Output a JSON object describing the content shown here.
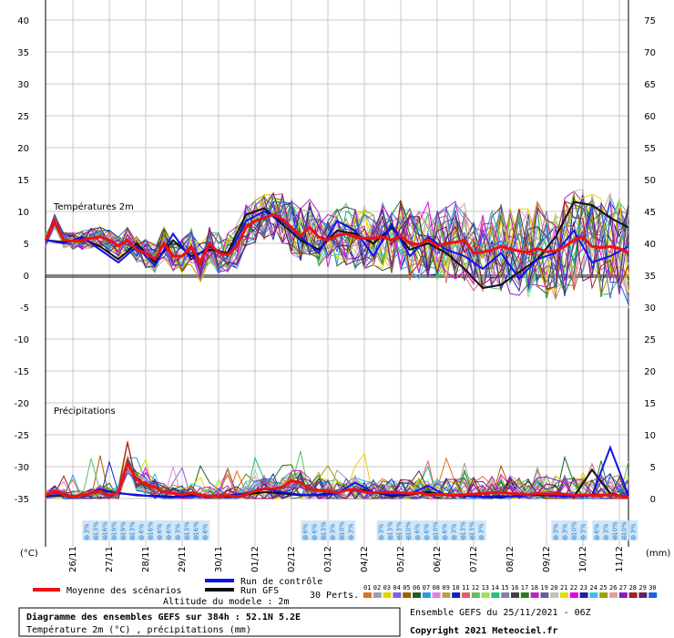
{
  "chart_data": {
    "type": "line",
    "title": "Diagramme des ensembles GEFS sur 384h : 52.1N 5.2E",
    "subtitle": "Température 2m (°C) , précipitations (mm)",
    "run_label": "Ensemble GEFS du 25/11/2021 - 06Z",
    "copyright": "Copyright 2021 Meteociel.fr",
    "altitude": "Altitude du modele : 2m",
    "panel_temp_label": "Températures 2m",
    "panel_precip_label": "Précipitations",
    "left_unit": "(°C)",
    "right_unit": "(mm)",
    "left_ticks": [
      40,
      35,
      30,
      25,
      20,
      15,
      10,
      5,
      0,
      -5,
      -10,
      -15,
      -20,
      -25,
      -30,
      -35
    ],
    "right_ticks": [
      75,
      70,
      65,
      60,
      55,
      50,
      45,
      40,
      35,
      30,
      25,
      20,
      15,
      10,
      5,
      0
    ],
    "x_ticks": [
      "26/11",
      "27/11",
      "28/11",
      "29/11",
      "30/11",
      "01/12",
      "02/12",
      "03/12",
      "04/12",
      "05/12",
      "06/12",
      "07/12",
      "08/12",
      "09/12",
      "10/12",
      "11/12"
    ],
    "x_range": [
      0,
      384
    ],
    "temp_ylim": [
      -35,
      40
    ],
    "precip_ylim": [
      0,
      15
    ],
    "series": [
      {
        "name": "Moyenne des scénarios",
        "color": "#ee1111",
        "t": [
          0,
          6,
          12,
          18,
          24,
          30,
          36,
          42,
          48,
          54,
          60,
          66,
          72,
          78,
          84,
          90,
          96,
          102,
          108,
          114,
          120,
          126,
          132,
          138,
          144,
          150,
          156,
          162,
          168,
          174,
          180,
          186,
          192,
          198,
          204,
          210,
          216,
          222,
          228,
          234,
          240,
          246,
          252,
          258,
          264,
          270,
          276,
          282,
          288,
          294,
          300,
          306,
          312,
          318,
          324,
          330,
          336,
          342,
          348,
          354,
          360,
          366,
          372,
          378,
          384
        ],
        "temp": [
          5.5,
          8.5,
          5.5,
          5.4,
          5.5,
          5.8,
          6.0,
          5.5,
          4.6,
          5.5,
          4.0,
          3.5,
          2.5,
          5.0,
          3.0,
          3.0,
          4.5,
          2.0,
          5.0,
          3.5,
          3.2,
          4.5,
          7.5,
          8.5,
          9.0,
          9.5,
          8.8,
          7.5,
          6.2,
          7.5,
          6.0,
          5.5,
          6.2,
          6.5,
          6.0,
          5.8,
          5.8,
          6.0,
          5.5,
          6.2,
          5.0,
          4.8,
          5.6,
          4.5,
          5.0,
          5.2,
          5.5,
          3.5,
          3.6,
          4.0,
          4.5,
          4.1,
          3.8,
          3.6,
          4.2,
          3.7,
          3.8,
          4.5,
          5.5,
          6.0,
          4.5,
          4.3,
          4.5,
          4.2,
          3.5
        ],
        "precip": [
          0.5,
          1.2,
          0.6,
          0.3,
          0.5,
          0.8,
          1.2,
          0.5,
          1.0,
          5.5,
          3.0,
          2.2,
          1.8,
          1.0,
          0.8,
          0.6,
          0.9,
          0.5,
          0.4,
          0.4,
          0.5,
          0.3,
          0.6,
          1.2,
          1.5,
          1.5,
          1.8,
          2.8,
          2.5,
          1.5,
          1.3,
          1.2,
          0.9,
          1.3,
          1.5,
          1.0,
          0.9,
          1.0,
          1.0,
          0.9,
          0.8,
          0.9,
          0.6,
          0.7,
          0.6,
          0.5,
          0.6,
          0.7,
          0.8,
          0.9,
          1.0,
          0.8,
          0.7,
          0.6,
          0.8,
          0.7,
          0.8,
          0.7,
          0.5,
          0.6,
          0.5,
          0.5,
          0.6,
          0.4,
          0.2
        ]
      },
      {
        "name": "Run de contrôle",
        "color": "#1111ee",
        "t": [
          0,
          12,
          24,
          36,
          48,
          60,
          72,
          84,
          96,
          108,
          120,
          132,
          144,
          156,
          168,
          180,
          192,
          204,
          216,
          228,
          240,
          252,
          264,
          276,
          288,
          300,
          312,
          324,
          336,
          348,
          360,
          372,
          384
        ],
        "temp": [
          5.5,
          5.0,
          6.0,
          4.0,
          2.0,
          4.5,
          1.5,
          6.5,
          2.5,
          4.5,
          3.0,
          8.5,
          10.0,
          8.5,
          6.0,
          3.5,
          8.5,
          7.0,
          3.0,
          8.0,
          3.0,
          6.0,
          4.0,
          3.0,
          1.0,
          3.5,
          -0.5,
          2.5,
          3.5,
          7.0,
          2.0,
          3.0,
          4.5
        ],
        "precip": [
          0.4,
          0.6,
          0.3,
          1.5,
          0.8,
          0.6,
          0.3,
          0.2,
          0.4,
          0.3,
          0.5,
          0.8,
          1.5,
          1.0,
          0.6,
          0.5,
          0.8,
          2.5,
          1.0,
          0.6,
          0.7,
          2.0,
          0.5,
          0.5,
          0.3,
          0.4,
          0.3,
          0.8,
          0.4,
          0.3,
          0.5,
          8.0,
          0.5
        ]
      },
      {
        "name": "Run GFS",
        "color": "#111111",
        "t": [
          0,
          12,
          24,
          36,
          48,
          60,
          72,
          84,
          96,
          108,
          120,
          132,
          144,
          156,
          168,
          180,
          192,
          204,
          216,
          228,
          240,
          252,
          264,
          276,
          288,
          300,
          312,
          324,
          336,
          348,
          360,
          372,
          384
        ],
        "temp": [
          5.5,
          5.2,
          5.8,
          4.5,
          2.5,
          5.0,
          2.0,
          5.5,
          3.0,
          4.0,
          3.5,
          9.5,
          10.5,
          8.0,
          5.5,
          4.0,
          7.0,
          6.5,
          5.0,
          7.5,
          4.0,
          5.0,
          3.5,
          1.0,
          -2.0,
          -1.5,
          0.5,
          2.5,
          6.0,
          11.5,
          11.0,
          9.0,
          7.5
        ],
        "precip": [
          0.3,
          0.5,
          0.4,
          1.2,
          0.9,
          0.5,
          0.4,
          0.3,
          0.5,
          0.4,
          0.3,
          0.6,
          1.0,
          0.8,
          0.5,
          0.6,
          1.0,
          1.5,
          1.0,
          0.4,
          0.6,
          1.0,
          0.6,
          0.4,
          0.3,
          0.2,
          0.5,
          0.6,
          0.4,
          0.3,
          4.5,
          0.8,
          0.2
        ]
      }
    ],
    "perturbation_count": 30,
    "perturbations_label": "30 Perts.",
    "perturbation_ids": [
      "01",
      "02",
      "03",
      "04",
      "05",
      "06",
      "07",
      "08",
      "09",
      "10",
      "11",
      "12",
      "13",
      "14",
      "15",
      "16",
      "17",
      "18",
      "19",
      "20",
      "21",
      "22",
      "23",
      "24",
      "25",
      "26",
      "27",
      "28",
      "29",
      "30"
    ],
    "perturbation_colors": [
      "#e07020",
      "#a0a0a0",
      "#e8d000",
      "#8060e0",
      "#a06000",
      "#206020",
      "#20a0e0",
      "#e080e0",
      "#c0a040",
      "#1020c0",
      "#e06060",
      "#60c060",
      "#a0e060",
      "#20c080",
      "#8080a0",
      "#404040",
      "#208020",
      "#c020c0",
      "#6060a0",
      "#c0c0c0",
      "#e0e000",
      "#e000e0",
      "#2020a0",
      "#40c0e0",
      "#a0a000",
      "#e0a0a0",
      "#8020c0",
      "#a02020",
      "#602060",
      "#2060e0"
    ],
    "legend_mean": "Moyenne des scénarios",
    "legend_control": "Run de contrôle",
    "legend_gfs": "Run GFS",
    "snow_groups": [
      {
        "t_start": 26,
        "labels": [
          "3%",
          "13%",
          "16%",
          "19%",
          "19%",
          "13%",
          "6%",
          "16%",
          "6%",
          "6%",
          "3%",
          "13%",
          "16%",
          "6%"
        ]
      },
      {
        "t_start": 170,
        "labels": [
          "6%",
          "6%",
          "13%",
          "3%",
          "10%",
          "3%"
        ]
      },
      {
        "t_start": 220,
        "labels": [
          "3%",
          "13%",
          "13%",
          "10%",
          "6%",
          "6%",
          "10%",
          "6%",
          "3%",
          "13%",
          "13%",
          "3%"
        ]
      },
      {
        "t_start": 335,
        "labels": [
          "3%",
          "3%",
          "10%",
          "3%"
        ]
      },
      {
        "t_start": 362,
        "labels": [
          "6%",
          "3%",
          "10%",
          "10%",
          "3%"
        ]
      }
    ]
  }
}
